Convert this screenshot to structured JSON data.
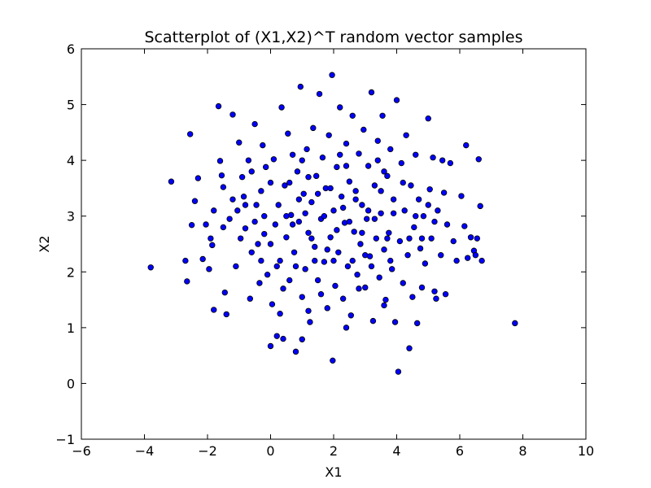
{
  "chart_data": {
    "type": "scatter",
    "title": "Scatterplot of (X1,X2)^T random vector samples",
    "xlabel": "X1",
    "ylabel": "X2",
    "xlim": [
      -6,
      10
    ],
    "ylim": [
      -1,
      6
    ],
    "xticks": [
      -6,
      -4,
      -2,
      0,
      2,
      4,
      6,
      8,
      10
    ],
    "xtick_labels": [
      "−6",
      "−4",
      "−2",
      "0",
      "2",
      "4",
      "6",
      "8",
      "10"
    ],
    "yticks": [
      -1,
      0,
      1,
      2,
      3,
      4,
      5,
      6
    ],
    "ytick_labels": [
      "−1",
      "0",
      "1",
      "2",
      "3",
      "4",
      "5",
      "6"
    ],
    "grid": false,
    "legend": false,
    "marker_color": "#0000ff",
    "marker_edge": "#000000",
    "points": [
      [
        -3.8,
        2.08
      ],
      [
        -3.15,
        3.62
      ],
      [
        -2.7,
        2.2
      ],
      [
        -2.65,
        1.83
      ],
      [
        -2.55,
        4.47
      ],
      [
        -2.5,
        2.84
      ],
      [
        -2.4,
        3.27
      ],
      [
        -2.3,
        3.68
      ],
      [
        -2.15,
        2.23
      ],
      [
        -2.05,
        2.85
      ],
      [
        -1.95,
        2.05
      ],
      [
        -1.9,
        2.6
      ],
      [
        -1.85,
        2.48
      ],
      [
        -1.8,
        1.32
      ],
      [
        -1.65,
        4.97
      ],
      [
        -1.6,
        3.99
      ],
      [
        -1.55,
        3.73
      ],
      [
        -1.5,
        3.52
      ],
      [
        -1.45,
        1.63
      ],
      [
        -1.4,
        1.24
      ],
      [
        -1.3,
        2.95
      ],
      [
        -1.2,
        4.82
      ],
      [
        -1.1,
        2.1
      ],
      [
        -1.05,
        3.1
      ],
      [
        -1.0,
        4.32
      ],
      [
        -0.95,
        2.6
      ],
      [
        -0.9,
        3.7
      ],
      [
        -0.85,
        3.35
      ],
      [
        -0.8,
        2.78
      ],
      [
        -0.7,
        4.0
      ],
      [
        -0.65,
        1.52
      ],
      [
        -0.6,
        2.35
      ],
      [
        -0.5,
        4.65
      ],
      [
        -0.45,
        3.2
      ],
      [
        -0.4,
        2.5
      ],
      [
        -0.35,
        1.8
      ],
      [
        -0.3,
        3.45
      ],
      [
        -0.25,
        4.27
      ],
      [
        -0.2,
        2.68
      ],
      [
        -0.15,
        3.88
      ],
      [
        -0.1,
        1.95
      ],
      [
        0.0,
        2.5
      ],
      [
        0.0,
        3.6
      ],
      [
        0.0,
        0.67
      ],
      [
        0.05,
        1.42
      ],
      [
        0.1,
        4.02
      ],
      [
        0.15,
        2.85
      ],
      [
        0.2,
        0.85
      ],
      [
        0.25,
        3.2
      ],
      [
        0.3,
        2.2
      ],
      [
        0.3,
        1.25
      ],
      [
        0.35,
        4.95
      ],
      [
        0.4,
        0.8
      ],
      [
        0.45,
        3.55
      ],
      [
        0.5,
        2.62
      ],
      [
        0.55,
        4.48
      ],
      [
        0.6,
        1.85
      ],
      [
        0.65,
        3.02
      ],
      [
        0.7,
        4.1
      ],
      [
        0.75,
        2.35
      ],
      [
        0.8,
        0.57
      ],
      [
        0.85,
        3.8
      ],
      [
        0.9,
        2.9
      ],
      [
        0.95,
        5.32
      ],
      [
        1.0,
        1.55
      ],
      [
        1.0,
        0.79
      ],
      [
        1.05,
        3.4
      ],
      [
        1.1,
        2.05
      ],
      [
        1.15,
        4.2
      ],
      [
        1.2,
        2.7
      ],
      [
        1.25,
        1.1
      ],
      [
        1.3,
        3.25
      ],
      [
        1.35,
        4.58
      ],
      [
        1.4,
        2.45
      ],
      [
        1.45,
        3.72
      ],
      [
        1.5,
        1.85
      ],
      [
        1.55,
        5.19
      ],
      [
        1.6,
        2.95
      ],
      [
        1.65,
        4.05
      ],
      [
        1.7,
        2.18
      ],
      [
        1.75,
        3.5
      ],
      [
        1.8,
        1.35
      ],
      [
        1.85,
        4.45
      ],
      [
        1.9,
        2.62
      ],
      [
        1.95,
        5.53
      ],
      [
        1.97,
        0.41
      ],
      [
        2.0,
        3.1
      ],
      [
        2.05,
        1.75
      ],
      [
        2.1,
        3.88
      ],
      [
        2.15,
        2.35
      ],
      [
        2.2,
        4.95
      ],
      [
        2.25,
        3.35
      ],
      [
        2.3,
        1.52
      ],
      [
        2.35,
        2.88
      ],
      [
        2.4,
        4.3
      ],
      [
        2.45,
        2.1
      ],
      [
        2.5,
        3.62
      ],
      [
        2.55,
        1.22
      ],
      [
        2.6,
        4.8
      ],
      [
        2.65,
        2.72
      ],
      [
        2.7,
        3.45
      ],
      [
        2.75,
        1.95
      ],
      [
        2.8,
        4.12
      ],
      [
        2.85,
        2.5
      ],
      [
        2.9,
        3.2
      ],
      [
        2.95,
        4.55
      ],
      [
        3.0,
        1.72
      ],
      [
        3.05,
        2.95
      ],
      [
        3.1,
        3.9
      ],
      [
        3.15,
        2.28
      ],
      [
        3.2,
        5.22
      ],
      [
        3.25,
        1.12
      ],
      [
        3.3,
        3.55
      ],
      [
        3.35,
        2.6
      ],
      [
        3.4,
        4.35
      ],
      [
        3.45,
        1.9
      ],
      [
        3.5,
        3.05
      ],
      [
        3.55,
        4.8
      ],
      [
        3.6,
        2.4
      ],
      [
        3.65,
        1.5
      ],
      [
        3.7,
        3.72
      ],
      [
        3.75,
        2.7
      ],
      [
        3.8,
        4.2
      ],
      [
        3.85,
        2.05
      ],
      [
        3.9,
        3.3
      ],
      [
        3.95,
        1.1
      ],
      [
        4.0,
        5.08
      ],
      [
        4.05,
        0.21
      ],
      [
        4.1,
        2.55
      ],
      [
        4.15,
        3.95
      ],
      [
        4.2,
        1.8
      ],
      [
        4.25,
        3.1
      ],
      [
        4.3,
        4.45
      ],
      [
        4.35,
        2.3
      ],
      [
        4.4,
        0.63
      ],
      [
        4.45,
        3.55
      ],
      [
        4.5,
        1.55
      ],
      [
        4.55,
        2.8
      ],
      [
        4.6,
        4.1
      ],
      [
        4.65,
        1.08
      ],
      [
        4.7,
        3.3
      ],
      [
        4.75,
        2.42
      ],
      [
        4.8,
        1.72
      ],
      [
        4.85,
        3.0
      ],
      [
        4.9,
        2.15
      ],
      [
        5.0,
        4.75
      ],
      [
        5.05,
        3.48
      ],
      [
        5.1,
        2.6
      ],
      [
        5.15,
        4.05
      ],
      [
        5.2,
        1.65
      ],
      [
        5.25,
        1.52
      ],
      [
        5.3,
        3.1
      ],
      [
        5.4,
        2.3
      ],
      [
        5.45,
        4.0
      ],
      [
        5.5,
        3.42
      ],
      [
        5.55,
        1.6
      ],
      [
        5.6,
        2.85
      ],
      [
        5.7,
        3.95
      ],
      [
        5.8,
        2.55
      ],
      [
        5.9,
        2.2
      ],
      [
        6.05,
        3.36
      ],
      [
        6.15,
        2.82
      ],
      [
        6.2,
        4.27
      ],
      [
        6.25,
        2.25
      ],
      [
        6.35,
        2.62
      ],
      [
        6.45,
        2.38
      ],
      [
        6.5,
        2.3
      ],
      [
        6.55,
        2.6
      ],
      [
        6.6,
        4.02
      ],
      [
        6.65,
        3.18
      ],
      [
        6.7,
        2.2
      ],
      [
        7.75,
        1.08
      ],
      [
        0.5,
        3.0
      ],
      [
        0.7,
        2.85
      ],
      [
        0.9,
        3.3
      ],
      [
        1.1,
        3.05
      ],
      [
        1.3,
        2.6
      ],
      [
        1.5,
        3.4
      ],
      [
        1.7,
        3.0
      ],
      [
        1.9,
        3.5
      ],
      [
        2.1,
        2.75
      ],
      [
        2.3,
        3.15
      ],
      [
        2.5,
        2.9
      ],
      [
        2.7,
        3.3
      ],
      [
        2.9,
        2.7
      ],
      [
        3.1,
        3.1
      ],
      [
        3.3,
        2.95
      ],
      [
        3.5,
        3.45
      ],
      [
        3.7,
        2.6
      ],
      [
        3.9,
        3.05
      ],
      [
        0.6,
        3.6
      ],
      [
        1.2,
        3.7
      ],
      [
        1.8,
        2.4
      ],
      [
        2.4,
        3.9
      ],
      [
        3.0,
        2.3
      ],
      [
        3.6,
        3.8
      ],
      [
        0.2,
        2.1
      ],
      [
        0.8,
        2.1
      ],
      [
        1.4,
        2.2
      ],
      [
        2.0,
        2.2
      ],
      [
        2.6,
        2.2
      ],
      [
        3.2,
        2.1
      ],
      [
        3.8,
        2.2
      ],
      [
        4.4,
        2.6
      ],
      [
        4.2,
        3.6
      ],
      [
        -0.2,
        3.0
      ],
      [
        -0.5,
        2.9
      ],
      [
        -0.8,
        3.2
      ],
      [
        -1.2,
        3.3
      ],
      [
        -1.5,
        2.8
      ],
      [
        -1.8,
        3.1
      ],
      [
        -0.3,
        2.2
      ],
      [
        -0.6,
        3.8
      ],
      [
        4.6,
        3.0
      ],
      [
        4.8,
        2.6
      ],
      [
        5.0,
        3.2
      ],
      [
        5.2,
        2.9
      ],
      [
        1.0,
        4.0
      ],
      [
        2.2,
        4.1
      ],
      [
        3.4,
        4.0
      ],
      [
        1.6,
        1.6
      ],
      [
        2.8,
        1.7
      ],
      [
        0.4,
        1.7
      ],
      [
        1.2,
        1.3
      ],
      [
        2.4,
        1.0
      ],
      [
        3.6,
        1.4
      ]
    ]
  }
}
